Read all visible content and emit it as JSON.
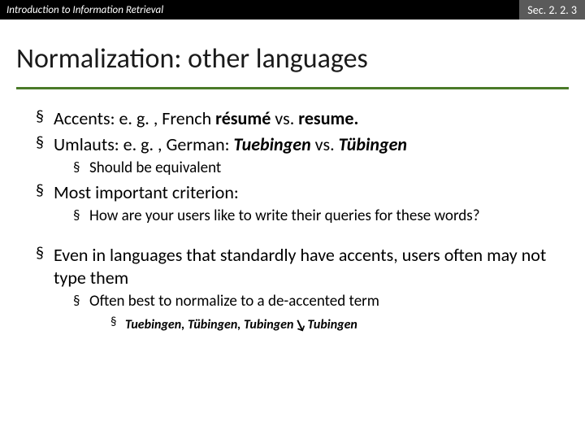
{
  "header": {
    "left": "Introduction to Information Retrieval",
    "right": "Sec. 2. 2. 3"
  },
  "title": "Normalization: other languages",
  "b1_pre": "Accents: e. g. , French ",
  "b1_w1": "résumé",
  "b1_mid": " vs. ",
  "b1_w2": "resume",
  "b1_post": ".",
  "b2_pre": "Umlauts: e. g. , German: ",
  "b2_w1": "Tuebingen",
  "b2_mid": " vs. ",
  "b2_w2": "Tübingen",
  "b2a": "Should be equivalent",
  "b3": "Most important criterion:",
  "b3a": "How are your users like to write their queries for these words?",
  "b4": "Even in languages that standardly have accents, users often may not type them",
  "b4a": "Often best to normalize to a de-accented term",
  "b4a1_pre": "Tuebingen, Tübingen, Tubingen",
  "b4a1_post": "Tubingen",
  "colors": {
    "rule": "#4a7a28",
    "header_bg": "#000000",
    "header_right_bg": "#5a5a5a"
  }
}
